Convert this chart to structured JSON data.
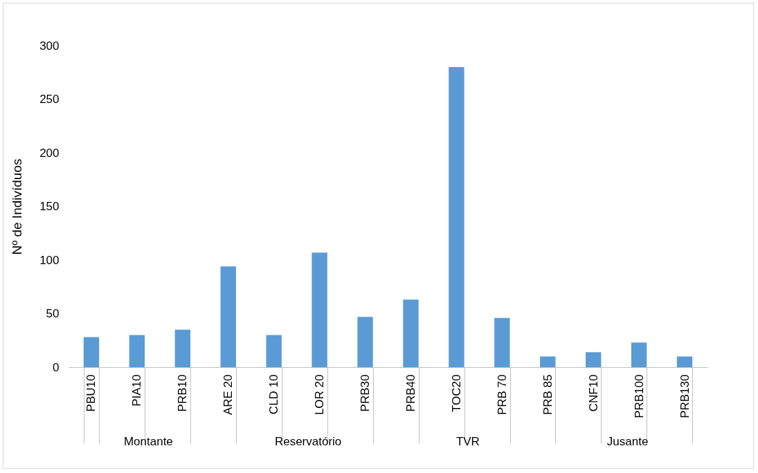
{
  "chart_data": {
    "type": "bar",
    "ylabel": "Nº de Indivíduos",
    "categories": [
      "PBU10",
      "PIA10",
      "PRB10",
      "ARE 20",
      "CLD 10",
      "LOR 20",
      "PRB30",
      "PRB40",
      "TOC20",
      "PRB 70",
      "PRB 85",
      "CNF10",
      "PRB100",
      "PRB130"
    ],
    "values": [
      28,
      30,
      35,
      94,
      30,
      107,
      47,
      63,
      280,
      46,
      10,
      14,
      23,
      10
    ],
    "color": "#5b9bd5",
    "ylim": [
      0,
      300
    ],
    "yticks": [
      0,
      50,
      100,
      150,
      200,
      250,
      300
    ],
    "annotations": [
      "Montante",
      "Reservatório",
      "TVR",
      "Jusante"
    ]
  }
}
